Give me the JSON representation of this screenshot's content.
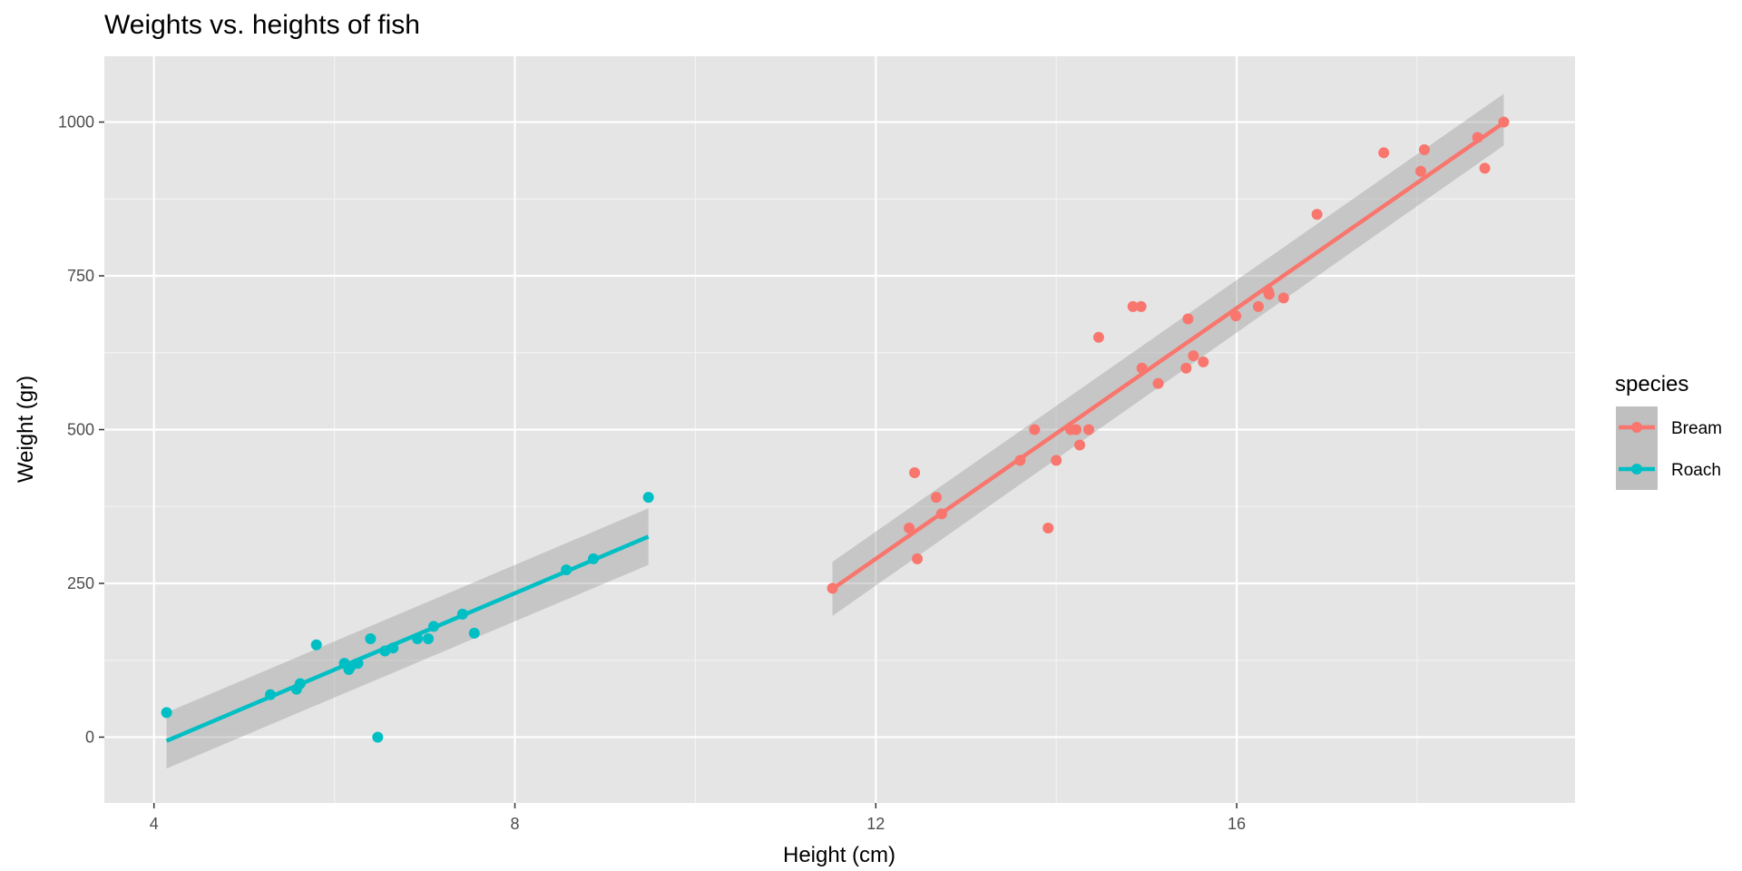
{
  "chart_data": {
    "type": "scatter",
    "title": "Weights vs. heights of fish",
    "xlabel": "Height (cm)",
    "ylabel": "Weight (gr)",
    "xlim": [
      3.45,
      19.75
    ],
    "ylim": [
      -107,
      1107
    ],
    "x_ticks": [
      4,
      8,
      12,
      16
    ],
    "x_tick_labels": [
      "4",
      "8",
      "12",
      "16"
    ],
    "y_ticks": [
      0,
      250,
      500,
      750,
      1000
    ],
    "y_tick_labels": [
      "0",
      "250",
      "500",
      "750",
      "1000"
    ],
    "grid": true,
    "legend": {
      "title": "species",
      "position": "right"
    },
    "series": [
      {
        "name": "Bream",
        "color": "#f8766d",
        "points": [
          [
            11.52,
            242
          ],
          [
            12.37,
            340
          ],
          [
            12.43,
            430
          ],
          [
            12.46,
            290
          ],
          [
            12.67,
            390
          ],
          [
            12.73,
            363
          ],
          [
            13.6,
            450
          ],
          [
            13.76,
            500
          ],
          [
            13.91,
            340
          ],
          [
            14.0,
            450
          ],
          [
            14.16,
            500
          ],
          [
            14.22,
            500
          ],
          [
            14.26,
            475
          ],
          [
            14.36,
            500
          ],
          [
            14.47,
            650
          ],
          [
            14.85,
            700
          ],
          [
            14.94,
            700
          ],
          [
            14.95,
            600
          ],
          [
            15.13,
            575
          ],
          [
            15.44,
            600
          ],
          [
            15.46,
            680
          ],
          [
            15.52,
            620
          ],
          [
            15.63,
            610
          ],
          [
            15.99,
            685
          ],
          [
            16.24,
            700
          ],
          [
            16.35,
            725
          ],
          [
            16.36,
            720
          ],
          [
            16.52,
            714
          ],
          [
            16.89,
            850
          ],
          [
            17.63,
            950
          ],
          [
            18.04,
            920
          ],
          [
            18.08,
            955
          ],
          [
            18.67,
            975
          ],
          [
            18.75,
            925
          ],
          [
            18.96,
            1000
          ]
        ],
        "fit": {
          "x": [
            11.52,
            18.96
          ],
          "y": [
            241,
            999
          ],
          "ci_lower": [
            197,
            962
          ],
          "ci_upper": [
            285,
            1046
          ]
        }
      },
      {
        "name": "Roach",
        "color": "#00bfc4",
        "points": [
          [
            4.14,
            40
          ],
          [
            5.29,
            69
          ],
          [
            5.58,
            78
          ],
          [
            5.62,
            87
          ],
          [
            5.8,
            150
          ],
          [
            6.11,
            120
          ],
          [
            6.16,
            110
          ],
          [
            6.18,
            115
          ],
          [
            6.26,
            120
          ],
          [
            6.4,
            160
          ],
          [
            6.48,
            0
          ],
          [
            6.56,
            140
          ],
          [
            6.65,
            145
          ],
          [
            6.92,
            160
          ],
          [
            7.04,
            160
          ],
          [
            7.1,
            180
          ],
          [
            7.42,
            200
          ],
          [
            7.55,
            169
          ],
          [
            8.57,
            272
          ],
          [
            8.87,
            290
          ],
          [
            9.48,
            390
          ]
        ],
        "fit": {
          "x": [
            4.14,
            9.48
          ],
          "y": [
            -6,
            326
          ],
          "ci_lower": [
            -51,
            280
          ],
          "ci_upper": [
            40,
            372
          ]
        }
      }
    ]
  }
}
